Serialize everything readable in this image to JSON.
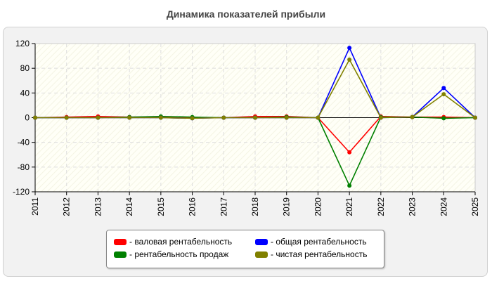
{
  "chart_data": {
    "type": "line",
    "title": "Динамика показателей прибыли",
    "x": [
      "2011",
      "2012",
      "2013",
      "2014",
      "2015",
      "2016",
      "2017",
      "2018",
      "2019",
      "2020",
      "2021",
      "2022",
      "2023",
      "2024",
      "2025"
    ],
    "ylim": [
      -120,
      120
    ],
    "yticks": [
      120,
      80,
      40,
      0,
      -40,
      -80,
      -120
    ],
    "grid": true,
    "legend_position": "bottom",
    "series": [
      {
        "name": "- валовая рентабельность",
        "color": "#ff0000",
        "values": [
          0,
          1,
          2,
          1,
          1,
          0,
          0,
          2,
          2,
          0,
          -56,
          2,
          1,
          1,
          0
        ]
      },
      {
        "name": "- рентабельность продаж",
        "color": "#008000",
        "values": [
          0,
          0,
          0,
          1,
          2,
          1,
          0,
          0,
          1,
          0,
          -110,
          1,
          1,
          -1,
          0
        ]
      },
      {
        "name": "- общая рентабельность",
        "color": "#0000ff",
        "values": [
          0,
          0,
          0,
          0,
          0,
          -1,
          0,
          0,
          0,
          0,
          113,
          0,
          1,
          48,
          0
        ]
      },
      {
        "name": "- чистая рентабельность",
        "color": "#808000",
        "values": [
          0,
          0,
          0,
          0,
          0,
          -1,
          0,
          0,
          0,
          0,
          94,
          0,
          1,
          38,
          0
        ]
      }
    ]
  }
}
